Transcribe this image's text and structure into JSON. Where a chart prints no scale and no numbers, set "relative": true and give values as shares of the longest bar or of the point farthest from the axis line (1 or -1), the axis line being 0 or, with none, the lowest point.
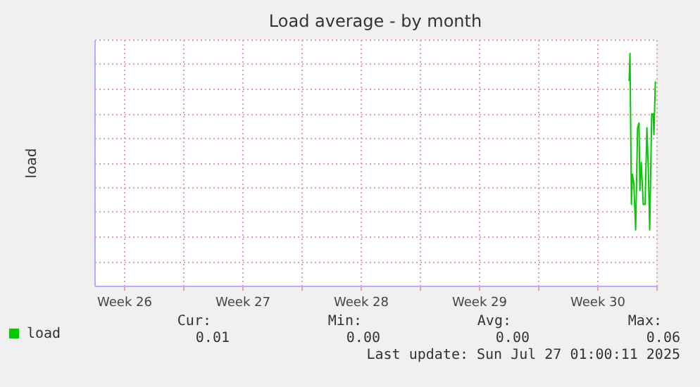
{
  "chart_data": {
    "type": "line",
    "title": "Load average - by month",
    "ylabel": "load",
    "relative": true,
    "x": [
      "2025-07-25T10:24",
      "2025-07-25T11:36",
      "2025-07-25T13:36",
      "2025-07-25T15:00",
      "2025-07-25T17:00",
      "2025-07-25T19:36",
      "2025-07-25T22:24",
      "2025-07-26T00:24",
      "2025-07-26T01:36",
      "2025-07-26T03:36",
      "2025-07-26T06:24",
      "2025-07-26T09:00",
      "2025-07-26T11:36",
      "2025-07-26T13:36",
      "2025-07-26T15:36",
      "2025-07-26T18:24",
      "2025-07-26T20:24",
      "2025-07-26T21:36",
      "2025-07-26T23:36"
    ],
    "series": [
      {
        "name": "load",
        "color": "#00cc00",
        "values": [
          0.88,
          1,
          0.35,
          0.48,
          0.44,
          0.24,
          0.68,
          0.7,
          0.41,
          0.53,
          0.35,
          0.35,
          0.68,
          0.5,
          0.24,
          0.74,
          0.74,
          0.65,
          0.88
        ]
      }
    ],
    "xlim": [
      "2025-06-23T19:00",
      "2025-07-27T01:00"
    ],
    "xticks": [
      {
        "value": "2025-06-25T13:00",
        "label": "Week 26"
      },
      {
        "value": "2025-06-29T01:00",
        "label": null
      },
      {
        "value": "2025-07-02T13:00",
        "label": "Week 27"
      },
      {
        "value": "2025-07-06T01:00",
        "label": null
      },
      {
        "value": "2025-07-09T13:00",
        "label": "Week 28"
      },
      {
        "value": "2025-07-13T01:00",
        "label": null
      },
      {
        "value": "2025-07-16T13:00",
        "label": "Week 29"
      },
      {
        "value": "2025-07-20T01:00",
        "label": null
      },
      {
        "value": "2025-07-23T13:00",
        "label": "Week 30"
      },
      {
        "value": "2025-07-27T01:00",
        "label": null
      }
    ],
    "grid": true,
    "legend": "bottom left",
    "annotations": [
      "Cur:",
      "Min:",
      "Avg:",
      "Max:",
      "0.01",
      "0.00",
      "0.00",
      "0.06",
      "Last update: Sun Jul 27 01:00:11 2025"
    ]
  }
}
